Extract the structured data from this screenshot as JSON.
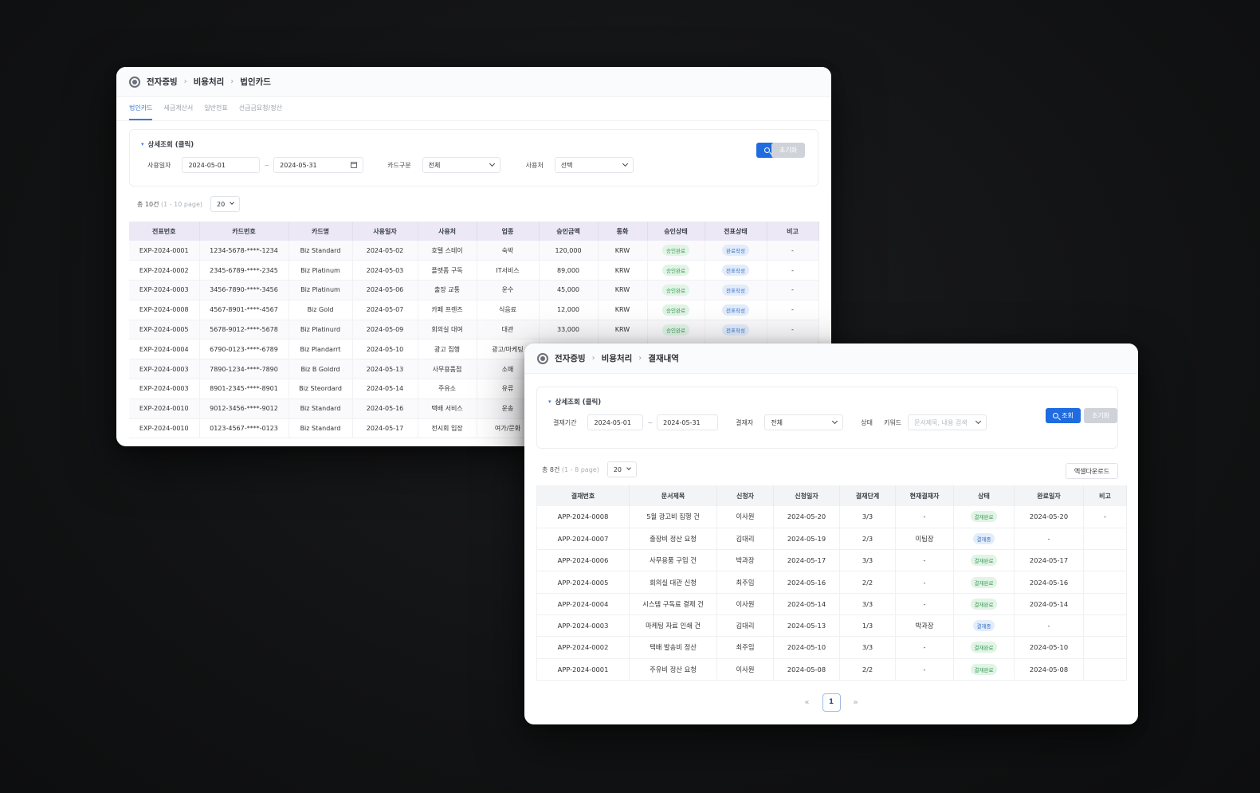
{
  "win1": {
    "breadcrumb": [
      "전자증빙",
      "비용처리",
      "법인카드"
    ],
    "tabs": [
      "법인카드",
      "세금계산서",
      "일반전표",
      "선급금요청/정산"
    ],
    "filter": {
      "title": "상세조회 (클릭)",
      "date_label": "사용일자",
      "date_from": "2024-05-01",
      "date_to": "2024-05-31",
      "card_type_label": "카드구분",
      "card_type_value": "전체",
      "user_label": "사용처",
      "user_value": "선택",
      "search_button": "조회",
      "reset_button": "초기화"
    },
    "count_text": "총 10건",
    "count_sub": "(1 - 10 page)",
    "page_size": "20",
    "columns": [
      "전표번호",
      "카드번호",
      "카드명",
      "사용일자",
      "사용처",
      "업종",
      "승인금액",
      "통화",
      "승인상태",
      "전표상태",
      "비고"
    ],
    "rows": [
      [
        "EXP-2024-0001",
        "1234-5678-****-1234",
        "Biz Standard",
        "2024-05-02",
        "호텔 스테이",
        "숙박",
        "120,000",
        "KRW",
        "승인완료",
        "완료작성",
        "-"
      ],
      [
        "EXP-2024-0002",
        "2345-6789-****-2345",
        "Biz Platinum",
        "2024-05-03",
        "플랫폼 구독",
        "IT서비스",
        "89,000",
        "KRW",
        "승인완료",
        "전표작성",
        "-"
      ],
      [
        "EXP-2024-0003",
        "3456-7890-****-3456",
        "Biz Platinum",
        "2024-05-06",
        "출장 교통",
        "운수",
        "45,000",
        "KRW",
        "승인완료",
        "전표작성",
        "-"
      ],
      [
        "EXP-2024-0008",
        "4567-8901-****-4567",
        "Biz Gold",
        "2024-05-07",
        "카페 프렌즈",
        "식음료",
        "12,000",
        "KRW",
        "승인완료",
        "전표작성",
        "-"
      ],
      [
        "EXP-2024-0005",
        "5678-9012-****-5678",
        "Biz Platinurd",
        "2024-05-09",
        "회의실 대여",
        "대관",
        "33,000",
        "KRW",
        "승인완료",
        "전표작성",
        "-"
      ],
      [
        "EXP-2024-0004",
        "6790-0123-****-6789",
        "Biz Plandarrt",
        "2024-05-10",
        "광고 집행",
        "광고/마케팅",
        "",
        "",
        "",
        "",
        ""
      ],
      [
        "EXP-2024-0003",
        "7890-1234-****-7890",
        "Biz B Goldrd",
        "2024-05-13",
        "사무용품점",
        "소매",
        "",
        "",
        "",
        "",
        ""
      ],
      [
        "EXP-2024-0003",
        "8901-2345-****-8901",
        "Biz Steordard",
        "2024-05-14",
        "주유소",
        "유류",
        "",
        "",
        "",
        "",
        ""
      ],
      [
        "EXP-2024-0010",
        "9012-3456-****-9012",
        "Biz Standard",
        "2024-05-16",
        "택배 서비스",
        "운송",
        "",
        "",
        "",
        "",
        ""
      ],
      [
        "EXP-2024-0010",
        "0123-4567-****-0123",
        "Biz Standard",
        "2024-05-17",
        "전시회 입장",
        "여가/문화",
        "",
        "",
        "",
        "",
        ""
      ]
    ]
  },
  "win2": {
    "breadcrumb": [
      "전자증빙",
      "비용처리",
      "결재내역"
    ],
    "filter": {
      "title": "상세조회 (클릭)",
      "period_label": "결재기간",
      "date_from": "2024-05-01",
      "date_to": "2024-05-31",
      "approver_label": "결재자",
      "approver_value": "전체",
      "status_label": "상태",
      "keyword_label": "키워드",
      "keyword_placeholder": "문서제목, 내용 검색",
      "search_button": "조회",
      "reset_button": "초기화"
    },
    "count_text": "총 8건",
    "count_sub": "(1 - 8 page)",
    "page_size": "20",
    "excel_button": "엑셀다운로드",
    "columns": [
      "결재번호",
      "문서제목",
      "신청자",
      "신청일자",
      "결재단계",
      "현재결재자",
      "상태",
      "완료일자",
      "비고"
    ],
    "rows": [
      [
        "APP-2024-0008",
        "5월 광고비 집행 건",
        "이사원",
        "2024-05-20",
        "3/3",
        "-",
        "결재완료",
        "2024-05-20",
        "-"
      ],
      [
        "APP-2024-0007",
        "출장비 정산 요청",
        "김대리",
        "2024-05-19",
        "2/3",
        "이팀장",
        "결재중",
        "-",
        ""
      ],
      [
        "APP-2024-0006",
        "사무용품 구입 건",
        "박과장",
        "2024-05-17",
        "3/3",
        "-",
        "결재완료",
        "2024-05-17",
        ""
      ],
      [
        "APP-2024-0005",
        "회의실 대관 신청",
        "최주임",
        "2024-05-16",
        "2/2",
        "-",
        "결재완료",
        "2024-05-16",
        ""
      ],
      [
        "APP-2024-0004",
        "시스템 구독료 결제 건",
        "이사원",
        "2024-05-14",
        "3/3",
        "-",
        "결재완료",
        "2024-05-14",
        ""
      ],
      [
        "APP-2024-0003",
        "마케팅 자료 인쇄 건",
        "김대리",
        "2024-05-13",
        "1/3",
        "박과장",
        "결재중",
        "-",
        ""
      ],
      [
        "APP-2024-0002",
        "택배 발송비 정산",
        "최주임",
        "2024-05-10",
        "3/3",
        "-",
        "결재완료",
        "2024-05-10",
        ""
      ],
      [
        "APP-2024-0001",
        "주유비 정산 요청",
        "이사원",
        "2024-05-08",
        "2/2",
        "-",
        "결재완료",
        "2024-05-08",
        ""
      ]
    ],
    "pager": {
      "prev": "«",
      "current": "1",
      "next": "»"
    }
  }
}
